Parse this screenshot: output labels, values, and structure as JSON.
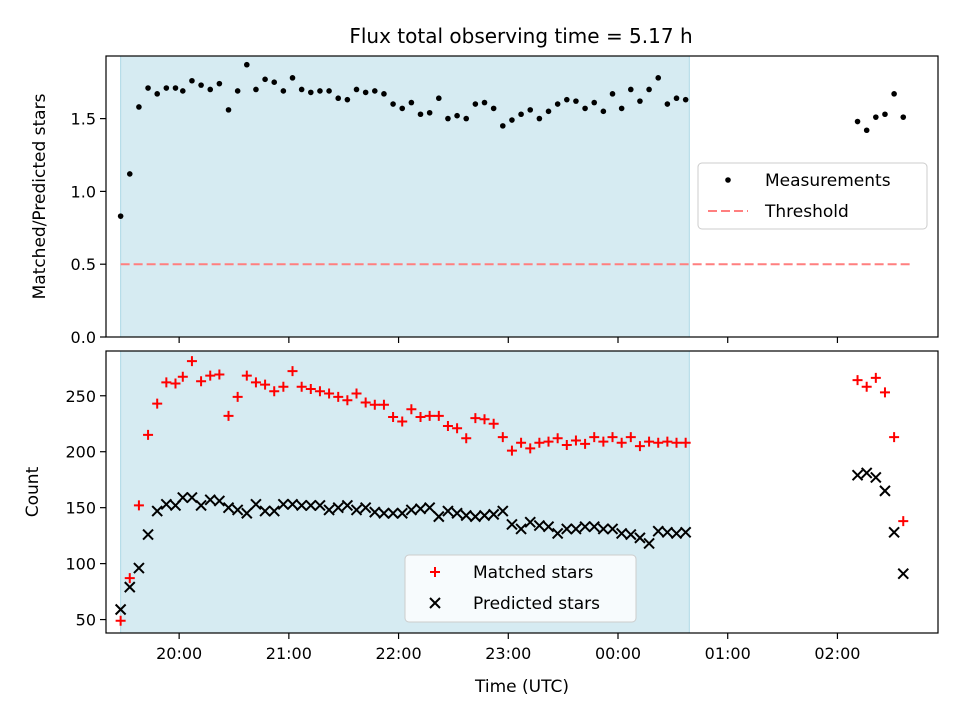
{
  "title": "Flux total observing time = 5.17 h",
  "chart_data": [
    {
      "type": "scatter",
      "ylabel": "Matched/Predicted stars",
      "xlabel": "",
      "x_range": [
        "19:20",
        "02:55"
      ],
      "ylim": [
        0,
        1.93
      ],
      "yticks": [
        "0.0",
        "0.5",
        "1.0",
        "1.5"
      ],
      "shaded_interval": [
        "19:28",
        "00:39"
      ],
      "legend": {
        "placement": "center-right",
        "entries": [
          {
            "label": "Measurements",
            "marker": "dot",
            "color": "#000000"
          },
          {
            "label": "Threshold",
            "marker": "dashed-line",
            "color": "#ff7f7f"
          }
        ]
      },
      "threshold": {
        "value": 0.5,
        "x_from": "19:28",
        "x_to": "02:40"
      },
      "series": [
        {
          "name": "Measurements",
          "points": [
            [
              "19:28",
              0.83
            ],
            [
              "19:33",
              1.12
            ],
            [
              "19:38",
              1.58
            ],
            [
              "19:43",
              1.71
            ],
            [
              "19:48",
              1.67
            ],
            [
              "19:53",
              1.71
            ],
            [
              "19:58",
              1.71
            ],
            [
              "20:02",
              1.69
            ],
            [
              "20:07",
              1.76
            ],
            [
              "20:12",
              1.73
            ],
            [
              "20:17",
              1.7
            ],
            [
              "20:22",
              1.74
            ],
            [
              "20:27",
              1.56
            ],
            [
              "20:32",
              1.69
            ],
            [
              "20:37",
              1.87
            ],
            [
              "20:42",
              1.7
            ],
            [
              "20:47",
              1.77
            ],
            [
              "20:52",
              1.75
            ],
            [
              "20:57",
              1.69
            ],
            [
              "21:02",
              1.78
            ],
            [
              "21:07",
              1.7
            ],
            [
              "21:12",
              1.68
            ],
            [
              "21:17",
              1.69
            ],
            [
              "21:22",
              1.69
            ],
            [
              "21:27",
              1.64
            ],
            [
              "21:32",
              1.63
            ],
            [
              "21:37",
              1.7
            ],
            [
              "21:42",
              1.68
            ],
            [
              "21:47",
              1.69
            ],
            [
              "21:52",
              1.67
            ],
            [
              "21:57",
              1.6
            ],
            [
              "22:02",
              1.57
            ],
            [
              "22:07",
              1.61
            ],
            [
              "22:12",
              1.53
            ],
            [
              "22:17",
              1.54
            ],
            [
              "22:22",
              1.64
            ],
            [
              "22:27",
              1.5
            ],
            [
              "22:32",
              1.52
            ],
            [
              "22:37",
              1.5
            ],
            [
              "22:42",
              1.6
            ],
            [
              "22:47",
              1.61
            ],
            [
              "22:52",
              1.57
            ],
            [
              "22:57",
              1.45
            ],
            [
              "23:02",
              1.49
            ],
            [
              "23:07",
              1.53
            ],
            [
              "23:12",
              1.56
            ],
            [
              "23:17",
              1.5
            ],
            [
              "23:22",
              1.55
            ],
            [
              "23:27",
              1.6
            ],
            [
              "23:32",
              1.63
            ],
            [
              "23:37",
              1.62
            ],
            [
              "23:42",
              1.57
            ],
            [
              "23:47",
              1.61
            ],
            [
              "23:52",
              1.55
            ],
            [
              "23:57",
              1.67
            ],
            [
              "00:02",
              1.57
            ],
            [
              "00:07",
              1.7
            ],
            [
              "00:12",
              1.62
            ],
            [
              "00:17",
              1.7
            ],
            [
              "00:22",
              1.78
            ],
            [
              "00:27",
              1.6
            ],
            [
              "00:32",
              1.64
            ],
            [
              "00:37",
              1.63
            ],
            [
              "02:11",
              1.48
            ],
            [
              "02:16",
              1.42
            ],
            [
              "02:21",
              1.51
            ],
            [
              "02:26",
              1.53
            ],
            [
              "02:31",
              1.67
            ],
            [
              "02:36",
              1.51
            ]
          ]
        }
      ]
    },
    {
      "type": "scatter",
      "ylabel": "Count",
      "xlabel": "Time (UTC)",
      "x_range": [
        "19:20",
        "02:55"
      ],
      "ylim": [
        38,
        290
      ],
      "yticks": [
        "50",
        "100",
        "150",
        "200",
        "250"
      ],
      "xticks": [
        "20:00",
        "21:00",
        "22:00",
        "23:00",
        "00:00",
        "01:00",
        "02:00"
      ],
      "shaded_interval": [
        "19:28",
        "00:39"
      ],
      "legend": {
        "placement": "lower-center",
        "entries": [
          {
            "label": "Matched stars",
            "marker": "plus",
            "color": "#ff0000"
          },
          {
            "label": "Predicted stars",
            "marker": "x",
            "color": "#000000"
          }
        ]
      },
      "series": [
        {
          "name": "Matched stars",
          "points": [
            [
              "19:28",
              49
            ],
            [
              "19:33",
              87
            ],
            [
              "19:38",
              152
            ],
            [
              "19:43",
              215
            ],
            [
              "19:48",
              243
            ],
            [
              "19:53",
              262
            ],
            [
              "19:58",
              261
            ],
            [
              "20:02",
              267
            ],
            [
              "20:07",
              281
            ],
            [
              "20:12",
              263
            ],
            [
              "20:17",
              268
            ],
            [
              "20:22",
              269
            ],
            [
              "20:27",
              232
            ],
            [
              "20:32",
              249
            ],
            [
              "20:37",
              268
            ],
            [
              "20:42",
              262
            ],
            [
              "20:47",
              260
            ],
            [
              "20:52",
              254
            ],
            [
              "20:57",
              258
            ],
            [
              "21:02",
              272
            ],
            [
              "21:07",
              258
            ],
            [
              "21:12",
              256
            ],
            [
              "21:17",
              254
            ],
            [
              "21:22",
              252
            ],
            [
              "21:27",
              249
            ],
            [
              "21:32",
              246
            ],
            [
              "21:37",
              252
            ],
            [
              "21:42",
              244
            ],
            [
              "21:47",
              242
            ],
            [
              "21:52",
              242
            ],
            [
              "21:57",
              231
            ],
            [
              "22:02",
              227
            ],
            [
              "22:07",
              238
            ],
            [
              "22:12",
              231
            ],
            [
              "22:17",
              232
            ],
            [
              "22:22",
              232
            ],
            [
              "22:27",
              223
            ],
            [
              "22:32",
              221
            ],
            [
              "22:37",
              212
            ],
            [
              "22:42",
              230
            ],
            [
              "22:47",
              229
            ],
            [
              "22:52",
              225
            ],
            [
              "22:57",
              213
            ],
            [
              "23:02",
              201
            ],
            [
              "23:07",
              208
            ],
            [
              "23:12",
              203
            ],
            [
              "23:17",
              208
            ],
            [
              "23:22",
              209
            ],
            [
              "23:27",
              212
            ],
            [
              "23:32",
              206
            ],
            [
              "23:37",
              210
            ],
            [
              "23:42",
              207
            ],
            [
              "23:47",
              213
            ],
            [
              "23:52",
              209
            ],
            [
              "23:57",
              213
            ],
            [
              "00:02",
              208
            ],
            [
              "00:07",
              213
            ],
            [
              "00:12",
              205
            ],
            [
              "00:17",
              209
            ],
            [
              "00:22",
              208
            ],
            [
              "00:27",
              209
            ],
            [
              "00:32",
              208
            ],
            [
              "00:37",
              208
            ],
            [
              "02:11",
              264
            ],
            [
              "02:16",
              258
            ],
            [
              "02:21",
              266
            ],
            [
              "02:26",
              253
            ],
            [
              "02:31",
              213
            ],
            [
              "02:36",
              138
            ]
          ]
        },
        {
          "name": "Predicted stars",
          "points": [
            [
              "19:28",
              59
            ],
            [
              "19:33",
              79
            ],
            [
              "19:38",
              96
            ],
            [
              "19:43",
              126
            ],
            [
              "19:48",
              147
            ],
            [
              "19:53",
              153
            ],
            [
              "19:58",
              152
            ],
            [
              "20:02",
              159
            ],
            [
              "20:07",
              159
            ],
            [
              "20:12",
              152
            ],
            [
              "20:17",
              157
            ],
            [
              "20:22",
              156
            ],
            [
              "20:27",
              150
            ],
            [
              "20:32",
              148
            ],
            [
              "20:37",
              145
            ],
            [
              "20:42",
              153
            ],
            [
              "20:47",
              147
            ],
            [
              "20:52",
              147
            ],
            [
              "20:57",
              153
            ],
            [
              "21:02",
              153
            ],
            [
              "21:07",
              152
            ],
            [
              "21:12",
              152
            ],
            [
              "21:17",
              152
            ],
            [
              "21:22",
              148
            ],
            [
              "21:27",
              150
            ],
            [
              "21:32",
              152
            ],
            [
              "21:37",
              148
            ],
            [
              "21:42",
              150
            ],
            [
              "21:47",
              146
            ],
            [
              "21:52",
              145
            ],
            [
              "21:57",
              145
            ],
            [
              "22:02",
              145
            ],
            [
              "22:07",
              148
            ],
            [
              "22:12",
              149
            ],
            [
              "22:17",
              150
            ],
            [
              "22:22",
              142
            ],
            [
              "22:27",
              147
            ],
            [
              "22:32",
              145
            ],
            [
              "22:37",
              143
            ],
            [
              "22:42",
              142
            ],
            [
              "22:47",
              143
            ],
            [
              "22:52",
              144
            ],
            [
              "22:57",
              147
            ],
            [
              "23:02",
              135
            ],
            [
              "23:07",
              131
            ],
            [
              "23:12",
              137
            ],
            [
              "23:17",
              134
            ],
            [
              "23:22",
              133
            ],
            [
              "23:27",
              127
            ],
            [
              "23:32",
              131
            ],
            [
              "23:37",
              131
            ],
            [
              "23:42",
              133
            ],
            [
              "23:47",
              133
            ],
            [
              "23:52",
              131
            ],
            [
              "23:57",
              131
            ],
            [
              "00:02",
              127
            ],
            [
              "00:07",
              126
            ],
            [
              "00:12",
              123
            ],
            [
              "00:17",
              118
            ],
            [
              "00:22",
              129
            ],
            [
              "00:27",
              128
            ],
            [
              "00:32",
              127
            ],
            [
              "00:37",
              128
            ],
            [
              "02:11",
              179
            ],
            [
              "02:16",
              181
            ],
            [
              "02:21",
              177
            ],
            [
              "02:26",
              165
            ],
            [
              "02:31",
              128
            ],
            [
              "02:36",
              91
            ]
          ]
        }
      ]
    }
  ]
}
